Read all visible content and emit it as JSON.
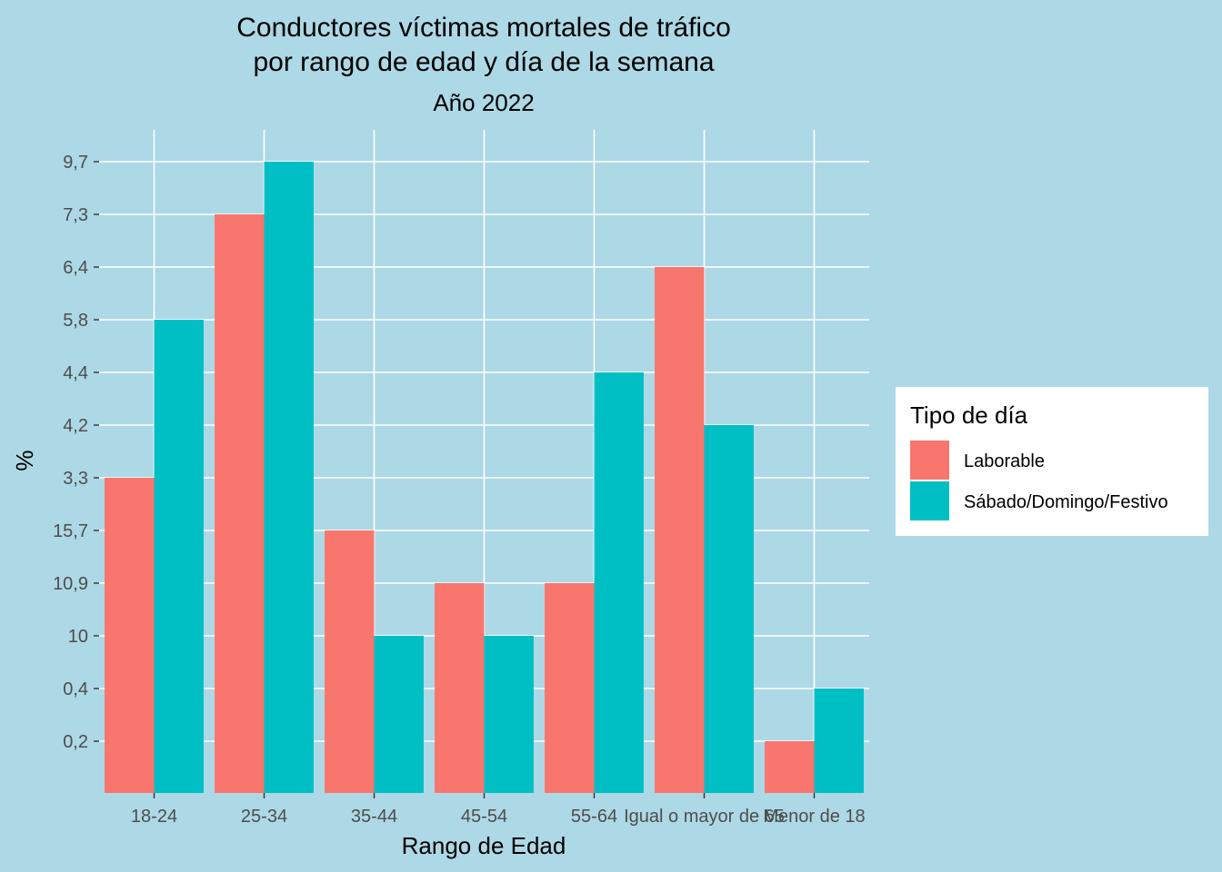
{
  "chart_data": {
    "type": "bar",
    "title_lines": [
      "Conductores víctimas mortales de tráfico",
      "por rango de edad y día de la semana"
    ],
    "subtitle": "Año 2022",
    "xlabel": "Rango de Edad",
    "ylabel": "%",
    "categories": [
      "18-24",
      "25-34",
      "35-44",
      "45-54",
      "55-64",
      "Igual o mayor de 65",
      "Menor de 18"
    ],
    "y_levels": [
      "0,2",
      "0,4",
      "10",
      "10,9",
      "15,7",
      "3,3",
      "4,2",
      "4,4",
      "5,8",
      "6,4",
      "7,3",
      "9,7"
    ],
    "series": [
      {
        "name": "Laborable",
        "color": "#f8766d",
        "values": [
          "3,3",
          "7,3",
          "15,7",
          "10,9",
          "10,9",
          "6,4",
          "0,2"
        ]
      },
      {
        "name": "Sábado/Domingo/Festivo",
        "color": "#00bfc4",
        "values": [
          "5,8",
          "9,7",
          "10",
          "10",
          "4,4",
          "4,2",
          "0,4"
        ]
      }
    ],
    "grid": true,
    "legend": {
      "title": "Tipo de día",
      "position": "right"
    }
  }
}
